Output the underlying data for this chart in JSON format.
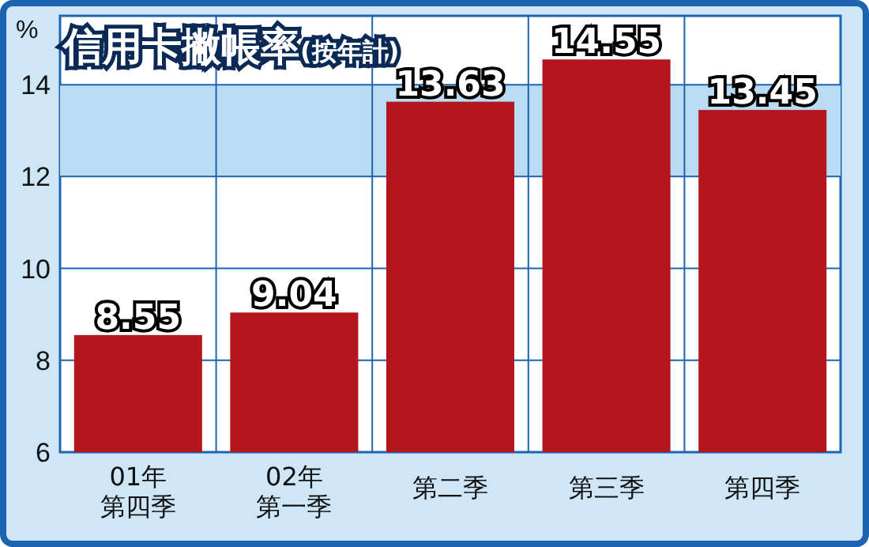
{
  "chart_data": {
    "type": "bar",
    "title": "信用卡撇帳率",
    "subtitle": "(按年計)",
    "ylabel": "%",
    "categories": [
      "01年第四季",
      "02年第一季",
      "第二季",
      "第三季",
      "第四季"
    ],
    "values": [
      8.55,
      9.04,
      13.63,
      14.55,
      13.45
    ],
    "color": "#b3161c",
    "ylim": [
      6,
      15.5
    ],
    "yticks": [
      6,
      8,
      10,
      12,
      14
    ],
    "grid": true,
    "data_labels": true
  }
}
